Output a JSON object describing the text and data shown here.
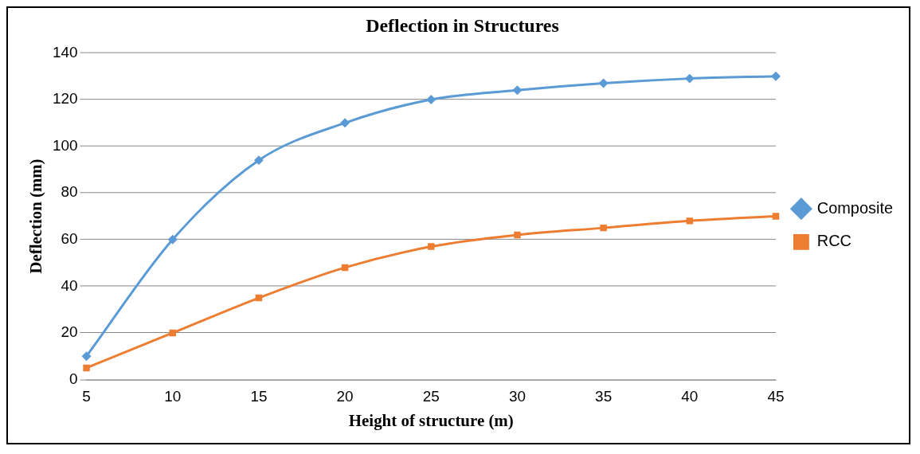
{
  "chart_data": {
    "type": "line",
    "title": "Deflection in Structures",
    "xlabel": "Height of structure (m)",
    "ylabel": "Deflection (mm)",
    "categories": [
      "5",
      "10",
      "15",
      "20",
      "25",
      "30",
      "35",
      "40",
      "45"
    ],
    "series": [
      {
        "name": "Composite",
        "color": "#5b9bd5",
        "marker": "diamond",
        "values": [
          10,
          60,
          94,
          110,
          120,
          124,
          127,
          129,
          130
        ]
      },
      {
        "name": "RCC",
        "color": "#ed7d31",
        "marker": "square",
        "values": [
          5,
          20,
          35,
          48,
          57,
          62,
          65,
          68,
          70
        ]
      }
    ],
    "ylim": [
      0,
      140
    ],
    "yticks": [
      0,
      20,
      40,
      60,
      80,
      100,
      120,
      140
    ],
    "grid": "y",
    "legend": "right",
    "line_style": "solid"
  }
}
